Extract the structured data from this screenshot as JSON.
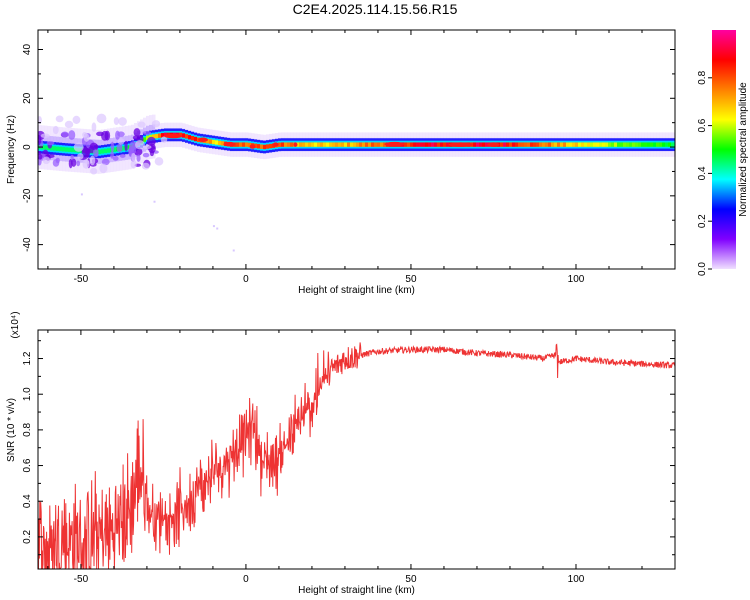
{
  "figure": {
    "title": "C2E4.2025.114.15.56.R15"
  },
  "chart_data": [
    {
      "type": "heatmap",
      "title": "C2E4.2025.114.15.56.R15",
      "xlabel": "Height of straight line (km)",
      "ylabel": "Frequency (Hz)",
      "xlim": [
        -63,
        130
      ],
      "ylim": [
        -50,
        48
      ],
      "x_ticks": [
        -50,
        0,
        50,
        100
      ],
      "x_tick_labels": [
        "-50",
        "0",
        "50",
        "100"
      ],
      "y_ticks": [
        40,
        20,
        0,
        -20,
        -40
      ],
      "y_tick_labels": [
        "40",
        "20",
        "0",
        "-20",
        "-40"
      ],
      "colorbar": {
        "label": "Normalized spectral amplitude",
        "range": [
          0,
          1
        ],
        "ticks": [
          0.0,
          0.2,
          0.4,
          0.6,
          0.8
        ],
        "tick_labels": [
          "0.0",
          "0.2",
          "0.4",
          "0.6",
          "0.8"
        ],
        "colors": [
          "#f0e0ff",
          "#8000ff",
          "#0000ff",
          "#00ffff",
          "#00ff00",
          "#ffff00",
          "#ff8000",
          "#ff0000",
          "#ff00a0"
        ]
      },
      "ridge": {
        "description_points_x": [
          -63,
          -55,
          -45,
          -35,
          -30,
          -25,
          -20,
          -15,
          -10,
          -5,
          0,
          5,
          10,
          20,
          30,
          50,
          80,
          100,
          130
        ],
        "center_freq": [
          0,
          -1,
          -2,
          0,
          4,
          5,
          5,
          3,
          2,
          1,
          1,
          0,
          1,
          1,
          1,
          1,
          1,
          1,
          1
        ],
        "peak_amplitude": [
          0.45,
          0.4,
          0.45,
          0.5,
          0.6,
          0.95,
          0.95,
          0.9,
          0.7,
          0.95,
          0.8,
          0.9,
          0.85,
          0.7,
          0.75,
          0.95,
          0.95,
          0.7,
          0.5
        ]
      }
    },
    {
      "type": "line",
      "xlabel": "Height of straight line (km)",
      "ylabel": "SNR (10 * v/v)",
      "y_multiplier": "(x10⁴)",
      "xlim": [
        -63,
        130
      ],
      "ylim": [
        0.02,
        1.36
      ],
      "x_ticks": [
        -50,
        0,
        50,
        100
      ],
      "x_tick_labels": [
        "-50",
        "0",
        "50",
        "100"
      ],
      "y_ticks": [
        0.2,
        0.4,
        0.6,
        0.8,
        1.0,
        1.2
      ],
      "y_tick_labels": [
        "0.2",
        "0.4",
        "0.6",
        "0.8",
        "1.0",
        "1.2"
      ],
      "series": [
        {
          "color": "#ee3333",
          "x": [
            -63,
            -60,
            -55,
            -50,
            -45,
            -40,
            -35,
            -32,
            -30,
            -25,
            -20,
            -15,
            -10,
            -5,
            0,
            2,
            5,
            10,
            15,
            20,
            25,
            30,
            35,
            40,
            50,
            60,
            70,
            80,
            90,
            94,
            95,
            100,
            110,
            120,
            130
          ],
          "values": [
            0.15,
            0.12,
            0.18,
            0.15,
            0.2,
            0.22,
            0.35,
            0.6,
            0.35,
            0.3,
            0.35,
            0.45,
            0.55,
            0.65,
            0.75,
            0.85,
            0.62,
            0.65,
            0.8,
            0.95,
            1.12,
            1.2,
            1.22,
            1.24,
            1.25,
            1.25,
            1.23,
            1.22,
            1.2,
            1.22,
            1.18,
            1.2,
            1.18,
            1.17,
            1.16
          ]
        }
      ]
    }
  ]
}
